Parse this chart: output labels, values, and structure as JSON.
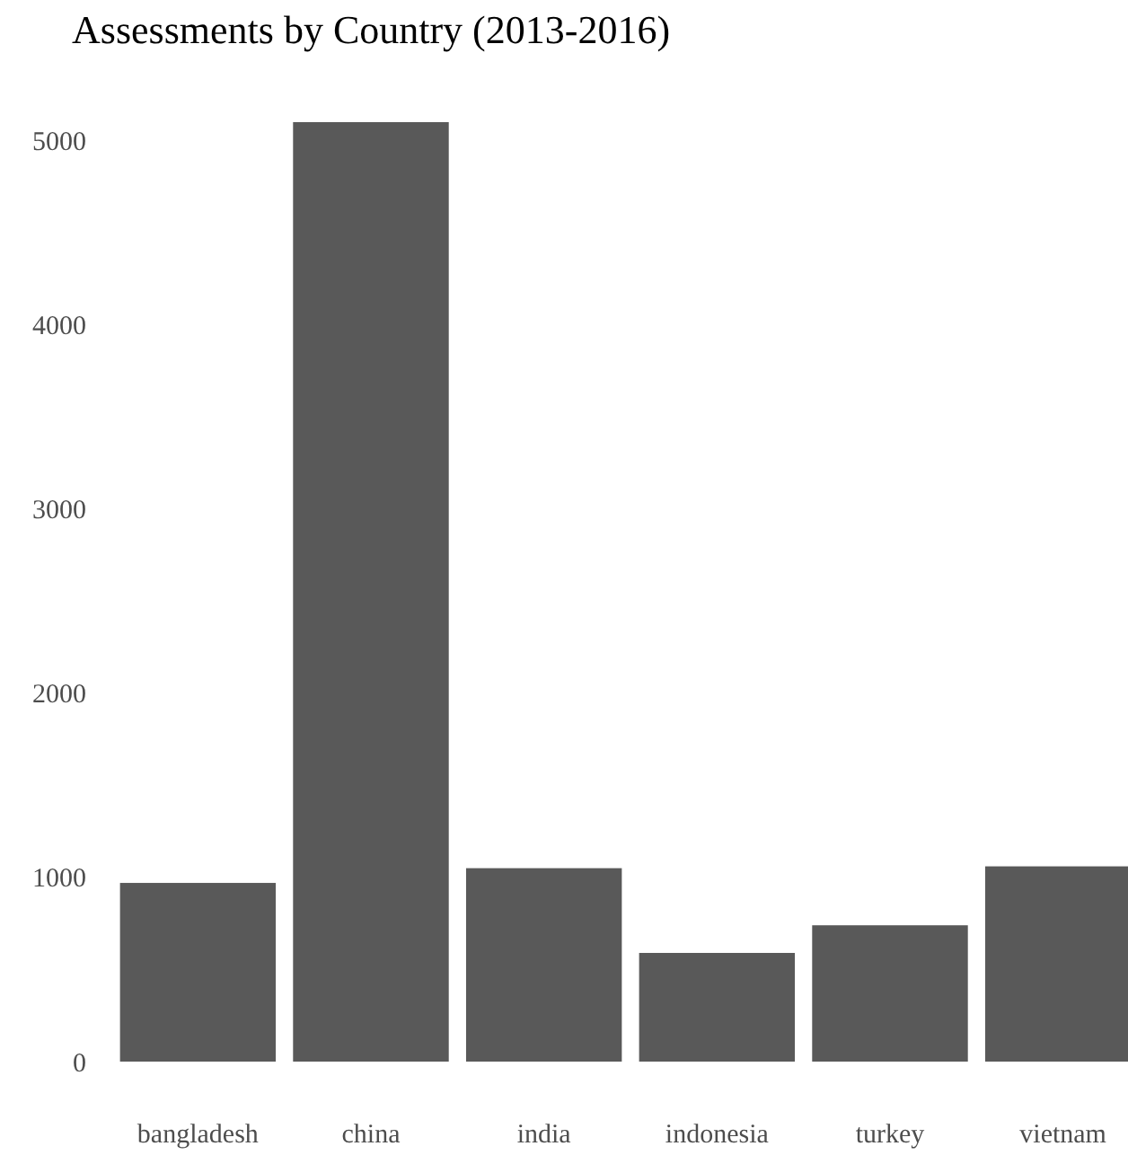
{
  "chart_data": {
    "type": "bar",
    "title": "Assessments by Country (2013-2016)",
    "categories": [
      "bangladesh",
      "china",
      "india",
      "indonesia",
      "turkey",
      "vietnam"
    ],
    "values": [
      970,
      5100,
      1050,
      590,
      740,
      1060
    ],
    "color": "#595959",
    "ylim": [
      0,
      5100
    ],
    "yticks": [
      0,
      1000,
      2000,
      3000,
      4000,
      5000
    ],
    "grid": false
  }
}
